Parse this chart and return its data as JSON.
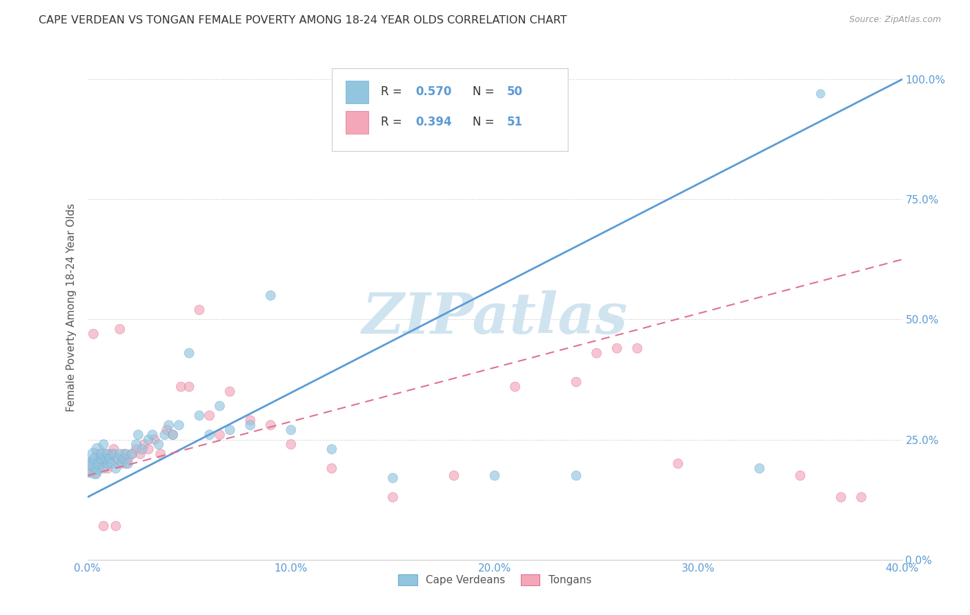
{
  "title": "CAPE VERDEAN VS TONGAN FEMALE POVERTY AMONG 18-24 YEAR OLDS CORRELATION CHART",
  "source": "Source: ZipAtlas.com",
  "ylabel_label": "Female Poverty Among 18-24 Year Olds",
  "xmin": 0.0,
  "xmax": 0.4,
  "ymin": 0.0,
  "ymax": 1.05,
  "cape_verdean_R": 0.57,
  "cape_verdean_N": 50,
  "tongan_R": 0.394,
  "tongan_N": 51,
  "blue_color": "#92c5de",
  "pink_color": "#f4a7b9",
  "blue_scatter_edge": "#6baed6",
  "pink_scatter_edge": "#e07090",
  "blue_line_color": "#5b9bd5",
  "pink_line_color": "#e07090",
  "watermark_color": "#d0e4f0",
  "watermark_text": "ZIPatlas",
  "legend_label_1": "Cape Verdeans",
  "legend_label_2": "Tongans",
  "blue_line_x0": 0.0,
  "blue_line_y0": 0.13,
  "blue_line_x1": 0.4,
  "blue_line_y1": 1.0,
  "pink_line_x0": 0.0,
  "pink_line_y0": 0.175,
  "pink_line_x1": 0.4,
  "pink_line_y1": 0.625,
  "cv_x": [
    0.001,
    0.002,
    0.003,
    0.004,
    0.004,
    0.005,
    0.005,
    0.006,
    0.007,
    0.007,
    0.008,
    0.008,
    0.009,
    0.01,
    0.01,
    0.011,
    0.012,
    0.013,
    0.014,
    0.015,
    0.016,
    0.017,
    0.018,
    0.019,
    0.02,
    0.022,
    0.024,
    0.025,
    0.027,
    0.03,
    0.032,
    0.035,
    0.038,
    0.04,
    0.042,
    0.045,
    0.05,
    0.055,
    0.06,
    0.065,
    0.07,
    0.08,
    0.09,
    0.1,
    0.12,
    0.15,
    0.2,
    0.24,
    0.33,
    0.36
  ],
  "cv_y": [
    0.19,
    0.2,
    0.22,
    0.18,
    0.21,
    0.19,
    0.23,
    0.2,
    0.21,
    0.22,
    0.19,
    0.24,
    0.21,
    0.2,
    0.22,
    0.21,
    0.2,
    0.22,
    0.19,
    0.21,
    0.22,
    0.2,
    0.21,
    0.22,
    0.2,
    0.22,
    0.24,
    0.26,
    0.23,
    0.25,
    0.26,
    0.24,
    0.26,
    0.28,
    0.26,
    0.28,
    0.43,
    0.3,
    0.26,
    0.32,
    0.27,
    0.28,
    0.55,
    0.27,
    0.23,
    0.17,
    0.175,
    0.175,
    0.19,
    0.97
  ],
  "cv_sizes": [
    350,
    200,
    150,
    150,
    150,
    150,
    150,
    150,
    100,
    100,
    100,
    100,
    100,
    100,
    100,
    100,
    100,
    100,
    100,
    100,
    100,
    100,
    100,
    100,
    100,
    100,
    100,
    100,
    100,
    100,
    100,
    100,
    100,
    100,
    100,
    100,
    100,
    100,
    100,
    100,
    100,
    100,
    100,
    100,
    100,
    100,
    100,
    100,
    100,
    80
  ],
  "ton_x": [
    0.001,
    0.002,
    0.003,
    0.004,
    0.005,
    0.005,
    0.006,
    0.007,
    0.008,
    0.009,
    0.01,
    0.011,
    0.012,
    0.013,
    0.014,
    0.015,
    0.016,
    0.017,
    0.018,
    0.019,
    0.02,
    0.022,
    0.024,
    0.026,
    0.028,
    0.03,
    0.033,
    0.036,
    0.039,
    0.042,
    0.046,
    0.05,
    0.055,
    0.06,
    0.065,
    0.07,
    0.08,
    0.09,
    0.1,
    0.12,
    0.15,
    0.18,
    0.21,
    0.24,
    0.25,
    0.26,
    0.27,
    0.29,
    0.35,
    0.37,
    0.38
  ],
  "ton_y": [
    0.19,
    0.2,
    0.47,
    0.18,
    0.2,
    0.22,
    0.21,
    0.2,
    0.07,
    0.22,
    0.19,
    0.21,
    0.22,
    0.23,
    0.07,
    0.2,
    0.48,
    0.21,
    0.22,
    0.2,
    0.21,
    0.22,
    0.23,
    0.22,
    0.24,
    0.23,
    0.25,
    0.22,
    0.27,
    0.26,
    0.36,
    0.36,
    0.52,
    0.3,
    0.26,
    0.35,
    0.29,
    0.28,
    0.24,
    0.19,
    0.13,
    0.175,
    0.36,
    0.37,
    0.43,
    0.44,
    0.44,
    0.2,
    0.175,
    0.13,
    0.13
  ],
  "ton_sizes": [
    300,
    150,
    100,
    100,
    100,
    100,
    100,
    100,
    100,
    100,
    100,
    100,
    100,
    100,
    100,
    100,
    100,
    100,
    100,
    100,
    100,
    100,
    100,
    100,
    100,
    100,
    100,
    100,
    100,
    100,
    100,
    100,
    100,
    100,
    100,
    100,
    100,
    100,
    100,
    100,
    100,
    100,
    100,
    100,
    100,
    100,
    100,
    100,
    100,
    100,
    100
  ]
}
